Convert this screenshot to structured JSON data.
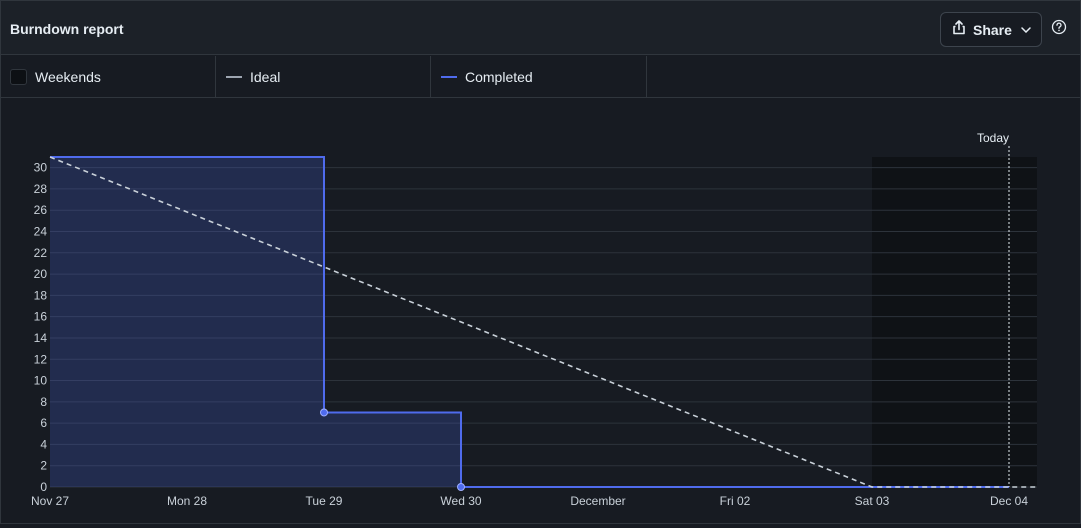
{
  "header": {
    "title": "Burndown report",
    "share_label": "Share"
  },
  "icons": {
    "share": "share-icon",
    "chevron": "chevron-down-icon",
    "help": "question-circle-icon"
  },
  "legend": {
    "items": [
      {
        "label": "Weekends",
        "kind": "box"
      },
      {
        "label": "Ideal",
        "kind": "line",
        "color": "#9da5b0"
      },
      {
        "label": "Completed",
        "kind": "line",
        "color": "#4f6bed"
      }
    ]
  },
  "colors": {
    "completed": "#4f6bed",
    "ideal": "#c9d1d9",
    "weekend": "#0f1216",
    "grid": "#2d333b",
    "today": "#e6edf3"
  },
  "chart_data": {
    "type": "line",
    "x_tick_labels": [
      "Nov 27",
      "Mon 28",
      "Tue 29",
      "Wed 30",
      "December",
      "Fri 02",
      "Sat 03",
      "Dec 04"
    ],
    "ylim": [
      0,
      31
    ],
    "y_ticks": [
      0,
      2,
      4,
      6,
      8,
      10,
      12,
      14,
      16,
      18,
      20,
      22,
      24,
      26,
      28,
      30
    ],
    "grid": true,
    "legend_position": "top",
    "annotation": "Today",
    "series": [
      {
        "name": "Completed",
        "step": true,
        "filled": true,
        "points": [
          {
            "x": "Nov 27",
            "y": 31
          },
          {
            "x": "Tue 29",
            "y": 7
          },
          {
            "x": "Wed 30",
            "y": 0
          },
          {
            "x": "Dec 04",
            "y": 0
          }
        ]
      },
      {
        "name": "Ideal",
        "dashed": true,
        "points": [
          {
            "x": "Nov 27",
            "y": 31
          },
          {
            "x": "Sat 03",
            "y": 0
          },
          {
            "x": "Dec 04",
            "y": 0
          }
        ]
      }
    ]
  }
}
